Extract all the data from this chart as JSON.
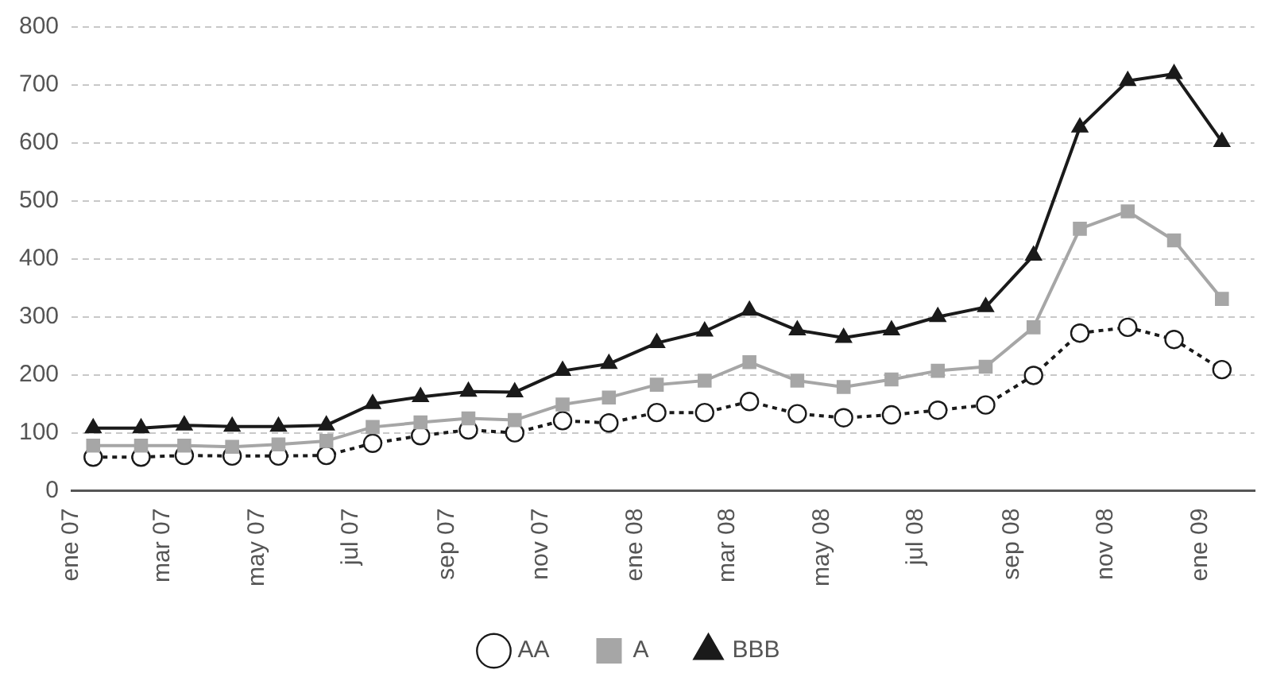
{
  "chart_data": {
    "type": "line",
    "x": [
      "2007-01-15",
      "2007-02-15",
      "2007-03-15",
      "2007-04-15",
      "2007-05-15",
      "2007-06-15",
      "2007-07-15",
      "2007-08-15",
      "2007-09-15",
      "2007-10-15",
      "2007-11-15",
      "2007-12-15",
      "2008-01-15",
      "2008-02-15",
      "2008-03-15",
      "2008-04-15",
      "2008-05-15",
      "2008-06-15",
      "2008-07-15",
      "2008-08-15",
      "2008-09-15",
      "2008-10-15",
      "2008-11-15",
      "2008-12-15",
      "2009-01-15"
    ],
    "series": [
      {
        "name": "AA",
        "color": "#1a1a1a",
        "marker": "circle",
        "line_style": "dotted",
        "values": [
          58,
          58,
          61,
          60,
          60,
          61,
          82,
          95,
          105,
          100,
          121,
          117,
          135,
          135,
          154,
          133,
          126,
          131,
          139,
          148,
          199,
          272,
          282,
          261,
          209
        ]
      },
      {
        "name": "A",
        "color": "#a6a6a6",
        "marker": "square",
        "line_style": "solid",
        "values": [
          78,
          78,
          78,
          76,
          80,
          86,
          110,
          118,
          125,
          122,
          149,
          161,
          183,
          190,
          222,
          190,
          179,
          192,
          207,
          214,
          282,
          452,
          482,
          432,
          331
        ]
      },
      {
        "name": "BBB",
        "color": "#1a1a1a",
        "marker": "triangle",
        "line_style": "solid",
        "values": [
          108,
          108,
          113,
          111,
          111,
          113,
          150,
          162,
          171,
          170,
          207,
          219,
          255,
          275,
          311,
          277,
          264,
          277,
          300,
          317,
          406,
          627,
          707,
          719,
          602
        ]
      }
    ],
    "xlim": [
      "2007-01-01",
      "2009-02-05"
    ],
    "xticks": [
      {
        "value": "2007-01-01",
        "label": "ene 07"
      },
      {
        "value": "2007-03-01",
        "label": "mar 07"
      },
      {
        "value": "2007-05-01",
        "label": "may 07"
      },
      {
        "value": "2007-07-01",
        "label": "jul 07"
      },
      {
        "value": "2007-09-01",
        "label": "sep 07"
      },
      {
        "value": "2007-11-01",
        "label": "nov 07"
      },
      {
        "value": "2008-01-01",
        "label": "ene 08"
      },
      {
        "value": "2008-03-01",
        "label": "mar 08"
      },
      {
        "value": "2008-05-01",
        "label": "may 08"
      },
      {
        "value": "2008-07-01",
        "label": "jul 08"
      },
      {
        "value": "2008-09-01",
        "label": "sep 08"
      },
      {
        "value": "2008-11-01",
        "label": "nov 08"
      },
      {
        "value": "2009-01-01",
        "label": "ene 09"
      }
    ],
    "ylim": [
      0,
      800
    ],
    "yticks": [
      0,
      100,
      200,
      300,
      400,
      500,
      600,
      700,
      800
    ],
    "grid": "y",
    "legend": "bottom"
  }
}
